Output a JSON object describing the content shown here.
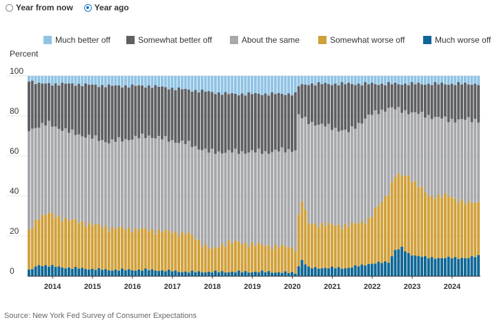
{
  "toggle": {
    "options": [
      {
        "label": "Year from now",
        "selected": false
      },
      {
        "label": "Year ago",
        "selected": true
      }
    ]
  },
  "source": "Source: New York Fed Survey of Consumer Expectations",
  "chart_data": {
    "type": "bar",
    "stacked": true,
    "title": "",
    "ylabel": "Percent",
    "xlabel": "",
    "ylim": [
      0,
      100
    ],
    "yticks": [
      0,
      20,
      40,
      60,
      80,
      100
    ],
    "grid": true,
    "legend_position": "top",
    "year_labels": [
      "2014",
      "2015",
      "2016",
      "2017",
      "2018",
      "2019",
      "2020",
      "2021",
      "2022",
      "2023",
      "2024"
    ],
    "first_period": "2013-06",
    "colors": {
      "much_better": "#8fc3e4",
      "somewhat_better": "#5f6064",
      "same": "#a7a8ab",
      "somewhat_worse": "#d0a03a",
      "much_worse": "#0f6796"
    },
    "series_order": [
      "much_worse",
      "somewhat_worse",
      "same",
      "somewhat_better",
      "much_better"
    ],
    "series_names": {
      "much_better": "Much better off",
      "somewhat_better": "Somewhat better off",
      "same": "About the same",
      "somewhat_worse": "Somewhat worse off",
      "much_worse": "Much worse off"
    },
    "knots": {
      "much_worse": [
        [
          0,
          2.5
        ],
        [
          3,
          5.5
        ],
        [
          6,
          5
        ],
        [
          12,
          4
        ],
        [
          24,
          3
        ],
        [
          36,
          3
        ],
        [
          48,
          2
        ],
        [
          60,
          2
        ],
        [
          72,
          2
        ],
        [
          80,
          1.5
        ],
        [
          81,
          5
        ],
        [
          82,
          8
        ],
        [
          84,
          4
        ],
        [
          96,
          4
        ],
        [
          102,
          6
        ],
        [
          108,
          7
        ],
        [
          110,
          13
        ],
        [
          112,
          14
        ],
        [
          114,
          11
        ],
        [
          120,
          9
        ],
        [
          126,
          9
        ],
        [
          132,
          9
        ],
        [
          135,
          10
        ]
      ],
      "somewhat_worse": [
        [
          0,
          22
        ],
        [
          3,
          30
        ],
        [
          6,
          31
        ],
        [
          12,
          28
        ],
        [
          24,
          24
        ],
        [
          36,
          23
        ],
        [
          48,
          21
        ],
        [
          55,
          13
        ],
        [
          60,
          17
        ],
        [
          72,
          15
        ],
        [
          80,
          14
        ],
        [
          81,
          30
        ],
        [
          82,
          38
        ],
        [
          84,
          26
        ],
        [
          96,
          25
        ],
        [
          102,
          28
        ],
        [
          108,
          42
        ],
        [
          110,
          50
        ],
        [
          112,
          50
        ],
        [
          114,
          50
        ],
        [
          120,
          40
        ],
        [
          126,
          40
        ],
        [
          132,
          36
        ],
        [
          135,
          37
        ]
      ],
      "same": [
        [
          0,
          73
        ],
        [
          3,
          75
        ],
        [
          6,
          76
        ],
        [
          12,
          72
        ],
        [
          24,
          67
        ],
        [
          36,
          70
        ],
        [
          48,
          66
        ],
        [
          54,
          62
        ],
        [
          60,
          62
        ],
        [
          72,
          62
        ],
        [
          78,
          63
        ],
        [
          80,
          63
        ],
        [
          81,
          80
        ],
        [
          84,
          77
        ],
        [
          96,
          72
        ],
        [
          102,
          80
        ],
        [
          108,
          84
        ],
        [
          114,
          82
        ],
        [
          120,
          80
        ],
        [
          126,
          78
        ],
        [
          132,
          78
        ],
        [
          135,
          78
        ]
      ],
      "somewhat_better": [
        [
          0,
          98
        ],
        [
          3,
          96
        ],
        [
          6,
          96
        ],
        [
          12,
          96
        ],
        [
          24,
          95
        ],
        [
          36,
          95
        ],
        [
          48,
          93
        ],
        [
          60,
          91
        ],
        [
          72,
          91
        ],
        [
          80,
          91
        ],
        [
          81,
          95
        ],
        [
          84,
          96
        ],
        [
          96,
          96
        ],
        [
          108,
          96
        ],
        [
          120,
          96
        ],
        [
          132,
          96
        ],
        [
          135,
          96
        ]
      ]
    }
  }
}
